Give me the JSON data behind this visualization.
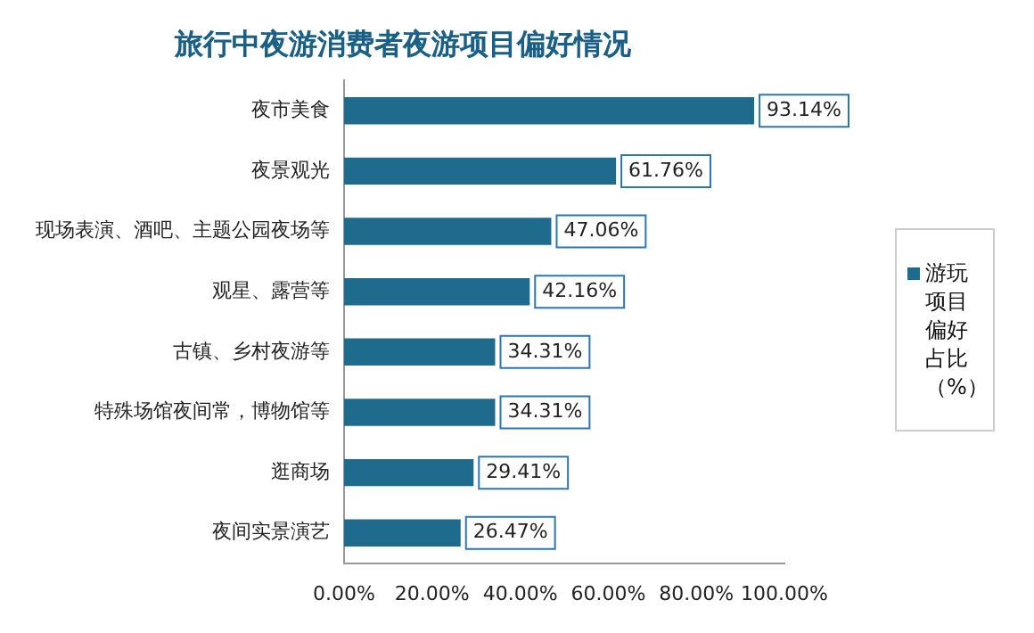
{
  "chart_data": {
    "type": "bar",
    "orientation": "horizontal",
    "title": "旅行中夜游消费者夜游项目偏好情况",
    "categories": [
      "夜市美食",
      "夜景观光",
      "现场表演、酒吧、主题公园夜场等",
      "观星、露营等",
      "古镇、乡村夜游等",
      "特殊场馆夜间常，博物馆等",
      "逛商场",
      "夜间实景演艺"
    ],
    "series": [
      {
        "name": "游玩项目偏好占比（%）",
        "color": "#1f6b8e",
        "values": [
          93.14,
          61.76,
          47.06,
          42.16,
          34.31,
          34.31,
          29.41,
          26.47
        ],
        "value_labels": [
          "93.14%",
          "61.76%",
          "47.06%",
          "42.16%",
          "34.31%",
          "34.31%",
          "29.41%",
          "26.47%"
        ]
      }
    ],
    "xlim": [
      0,
      100
    ],
    "xticks": [
      {
        "value": 0,
        "label": "0.00%"
      },
      {
        "value": 20,
        "label": "20.00%"
      },
      {
        "value": 40,
        "label": "40.00%"
      },
      {
        "value": 60,
        "label": "60.00%"
      },
      {
        "value": 80,
        "label": "80.00%"
      },
      {
        "value": 100,
        "label": "100.00%"
      }
    ],
    "grid": false,
    "legend": "right"
  }
}
